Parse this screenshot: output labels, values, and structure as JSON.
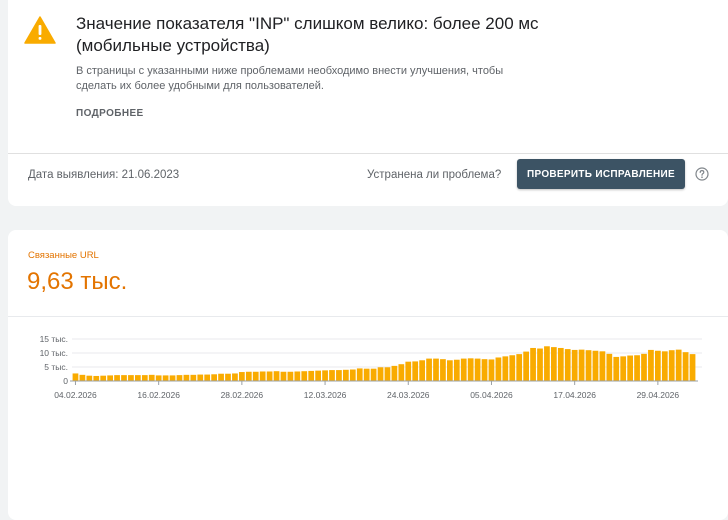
{
  "issue": {
    "title": "Значение показателя \"INP\" слишком велико: более 200 мс (мобильные устройства)",
    "description": "В страницы с указанными ниже проблемами необходимо внести улучшения, чтобы сделать их более удобными для пользователей.",
    "learn_more": "ПОДРОБНЕЕ",
    "detection_date": "Дата выявления: 21.06.2023",
    "fixed_question": "Устранена ли проблема?",
    "validate_button": "ПРОВЕРИТЬ ИСПРАВЛЕНИЕ"
  },
  "colors": {
    "warning": "#f9ab00",
    "accent": "#e37400",
    "bar": "#f9ab00",
    "button": "#3c5364"
  },
  "icons": {
    "warning": "warning-triangle-icon",
    "help": "help-circle-icon"
  },
  "summary": {
    "label": "Связанные URL",
    "value": "9,63 тыс."
  },
  "chart_data": {
    "type": "bar",
    "ylim": [
      0,
      15000
    ],
    "y_ticks": [
      {
        "value": 0,
        "label": "0"
      },
      {
        "value": 5000,
        "label": "5 тыс."
      },
      {
        "value": 10000,
        "label": "10 тыс."
      },
      {
        "value": 15000,
        "label": "15 тыс."
      }
    ],
    "x_tick_labels": [
      {
        "index": 0,
        "label": "04.02.2026"
      },
      {
        "index": 12,
        "label": "16.02.2026"
      },
      {
        "index": 24,
        "label": "28.02.2026"
      },
      {
        "index": 36,
        "label": "12.03.2026"
      },
      {
        "index": 48,
        "label": "24.03.2026"
      },
      {
        "index": 60,
        "label": "05.04.2026"
      },
      {
        "index": 72,
        "label": "17.04.2026"
      },
      {
        "index": 84,
        "label": "29.04.2026"
      }
    ],
    "values": [
      2700,
      2200,
      1900,
      1800,
      1900,
      2000,
      2100,
      2100,
      2100,
      2100,
      2100,
      2200,
      2000,
      2000,
      2000,
      2100,
      2200,
      2200,
      2300,
      2300,
      2400,
      2600,
      2600,
      2700,
      3200,
      3300,
      3300,
      3400,
      3400,
      3500,
      3300,
      3300,
      3400,
      3500,
      3600,
      3700,
      3800,
      3900,
      3900,
      4000,
      4100,
      4500,
      4400,
      4400,
      4900,
      4900,
      5400,
      6000,
      6900,
      7000,
      7400,
      8000,
      8000,
      7800,
      7400,
      7600,
      8000,
      8100,
      8000,
      7800,
      7700,
      8400,
      8800,
      9200,
      9600,
      10500,
      11800,
      11600,
      12400,
      12100,
      11800,
      11400,
      11100,
      11200,
      11000,
      10800,
      10600,
      9700,
      8600,
      8800,
      9100,
      9200,
      9700,
      11100,
      10800,
      10600,
      11000,
      11200,
      10300,
      9600
    ]
  }
}
